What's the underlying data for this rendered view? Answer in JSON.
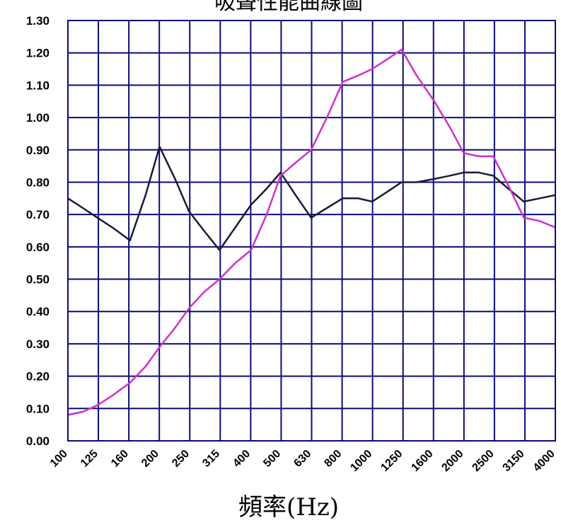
{
  "chart_data": {
    "type": "line",
    "title": "吸聲性能曲線圖",
    "xlabel": "頻率(Hz)",
    "ylabel": "",
    "categories": [
      "100",
      "125",
      "160",
      "200",
      "250",
      "315",
      "400",
      "500",
      "630",
      "800",
      "1000",
      "1250",
      "1600",
      "2000",
      "2500",
      "3150",
      "4000"
    ],
    "y_tick_labels": [
      "0.00",
      "0.10",
      "0.20",
      "0.30",
      "0.40",
      "0.50",
      "0.60",
      "0.70",
      "0.80",
      "0.90",
      "1.00",
      "1.10",
      "1.20",
      "1.30"
    ],
    "ylim": [
      0,
      1.3
    ],
    "grid": true,
    "x_values": [
      100,
      112,
      125,
      140,
      160,
      180,
      200,
      225,
      250,
      280,
      315,
      355,
      400,
      450,
      500,
      560,
      630,
      710,
      800,
      900,
      1000,
      1120,
      1250,
      1400,
      1600,
      1800,
      2000,
      2240,
      2500,
      2800,
      3150,
      3550,
      4000
    ],
    "series": [
      {
        "color": "#1a1a3a",
        "values": [
          0.75,
          0.72,
          0.69,
          0.66,
          0.62,
          0.76,
          0.91,
          0.81,
          0.71,
          0.65,
          0.59,
          0.66,
          0.73,
          0.78,
          0.83,
          0.76,
          0.69,
          0.72,
          0.75,
          0.75,
          0.74,
          0.77,
          0.8,
          0.8,
          0.81,
          0.82,
          0.83,
          0.83,
          0.82,
          0.78,
          0.74,
          0.75,
          0.76
        ]
      },
      {
        "color": "#cc33cc",
        "values": [
          0.08,
          0.09,
          0.11,
          0.14,
          0.18,
          0.23,
          0.29,
          0.35,
          0.41,
          0.46,
          0.5,
          0.55,
          0.59,
          0.7,
          0.82,
          0.86,
          0.9,
          1.0,
          1.11,
          1.13,
          1.15,
          1.18,
          1.21,
          1.13,
          1.05,
          0.97,
          0.89,
          0.88,
          0.88,
          0.79,
          0.69,
          0.68,
          0.66
        ]
      }
    ]
  }
}
